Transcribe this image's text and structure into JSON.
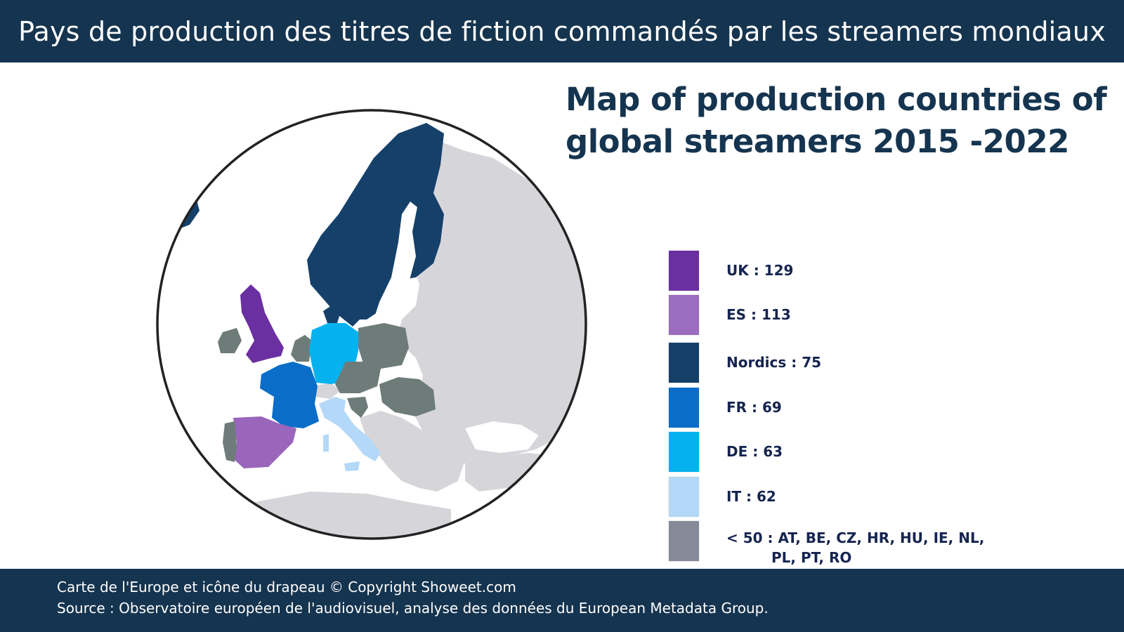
{
  "header": {
    "title": "Pays de production des titres de fiction commandés par les streamers mondiaux"
  },
  "map": {
    "title_line1": "Map of production countries of",
    "title_line2": "global streamers 2015 -2022",
    "colors": {
      "uk": "#6a2fa0",
      "es": "#9966bb",
      "nordics": "#15406a",
      "fr": "#0a6ec8",
      "de": "#05b2ef",
      "it": "#add6f8",
      "under50": "#6e7c79",
      "other": "#d6d6da",
      "water": "#ffffff",
      "border": "#222222"
    }
  },
  "legend": {
    "items": [
      {
        "label": "UK : 129",
        "color": "#6a2fa0"
      },
      {
        "label": "ES : 113",
        "color": "#9b6cc0"
      },
      {
        "label": "Nordics : 75",
        "color": "#15406a"
      },
      {
        "label": "FR : 69",
        "color": "#0a6ec8"
      },
      {
        "label": "DE : 63",
        "color": "#05b2ef"
      },
      {
        "label": "IT : 62",
        "color": "#b3d8f8"
      },
      {
        "label_line1": "< 50 : AT, BE, CZ, HR, HU, IE, NL,",
        "label_line2": "PL, PT, RO",
        "color": "#848a97"
      }
    ]
  },
  "footer": {
    "copyright": "Carte de l'Europe et icône du drapeau © Copyright Showeet.com",
    "source": "Source : Observatoire européen de l'audiovisuel, analyse des données du European Metadata Group."
  }
}
